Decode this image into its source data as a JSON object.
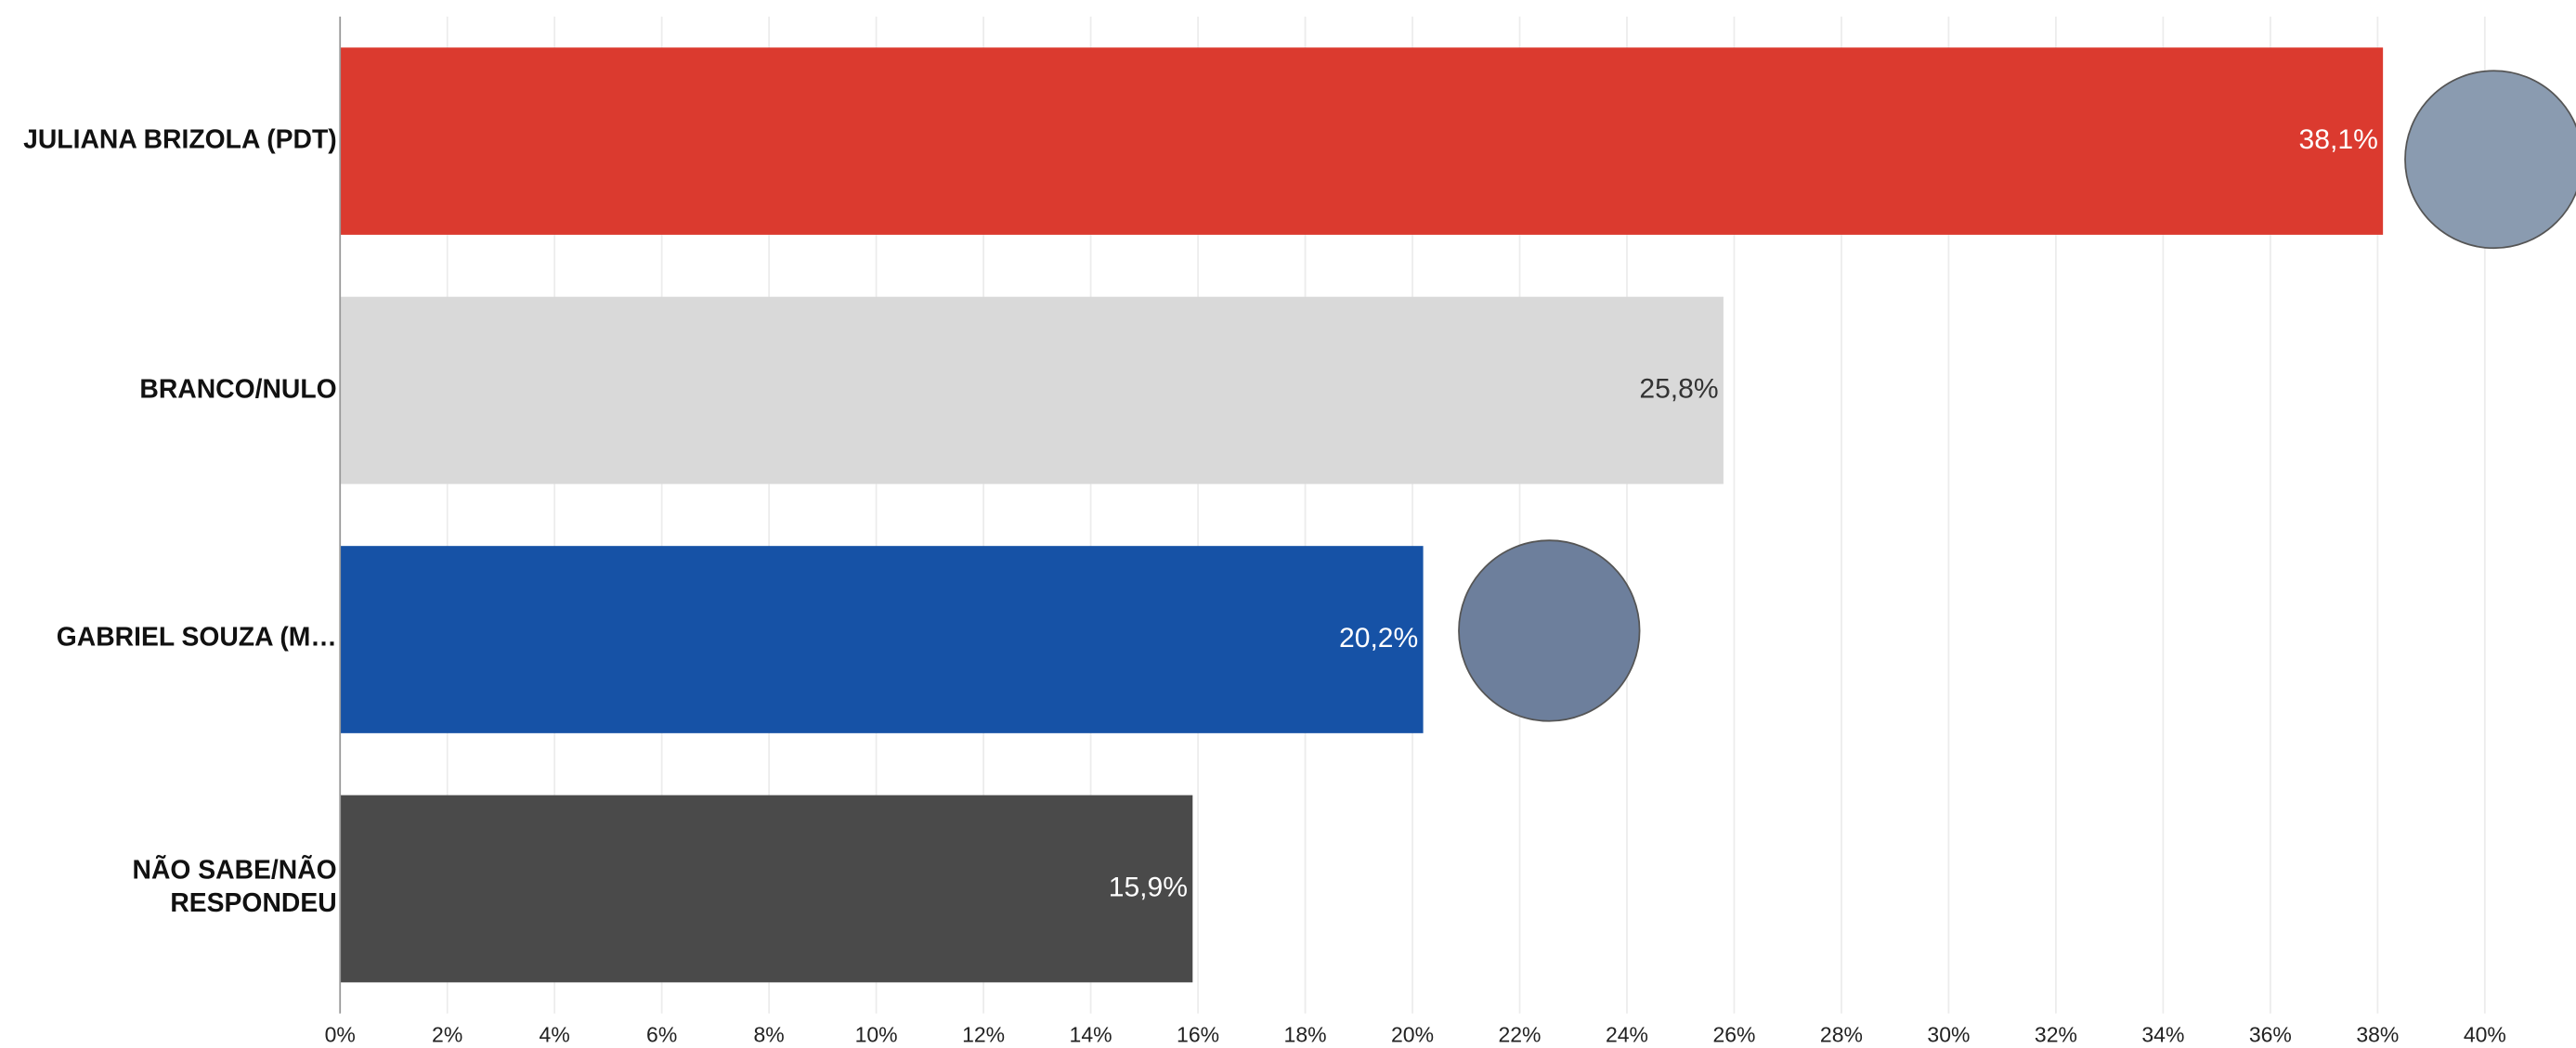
{
  "chart_data": {
    "type": "hbar",
    "categories": [
      "JULIANA BRIZOLA (PDT)",
      "BRANCO/NULO",
      "GABRIEL SOUZA (M…",
      "NÃO SABE/NÃO RESPONDEU"
    ],
    "values": [
      38.1,
      25.8,
      20.2,
      15.9
    ],
    "value_labels": [
      "38,1%",
      "25,8%",
      "20,2%",
      "15,9%"
    ],
    "colors": [
      "#db3a2f",
      "#d9d9d9",
      "#1652a6",
      "#4a4a4a"
    ],
    "label_colors": [
      "#ffffff",
      "#333333",
      "#ffffff",
      "#ffffff"
    ],
    "xlim": [
      0,
      41.7
    ],
    "xticks": [
      {
        "value": 0,
        "label": "0%"
      },
      {
        "value": 2,
        "label": "2%"
      },
      {
        "value": 4,
        "label": "4%"
      },
      {
        "value": 6,
        "label": "6%"
      },
      {
        "value": 8,
        "label": "8%"
      },
      {
        "value": 10,
        "label": "10%"
      },
      {
        "value": 12,
        "label": "12%"
      },
      {
        "value": 14,
        "label": "14%"
      },
      {
        "value": 16,
        "label": "16%"
      },
      {
        "value": 18,
        "label": "18%"
      },
      {
        "value": 20,
        "label": "20%"
      },
      {
        "value": 22,
        "label": "22%"
      },
      {
        "value": 24,
        "label": "24%"
      },
      {
        "value": 26,
        "label": "26%"
      },
      {
        "value": 28,
        "label": "28%"
      },
      {
        "value": 30,
        "label": "30%"
      },
      {
        "value": 32,
        "label": "32%"
      },
      {
        "value": 34,
        "label": "34%"
      },
      {
        "value": 36,
        "label": "36%"
      },
      {
        "value": 38,
        "label": "38%"
      },
      {
        "value": 40,
        "label": "40%"
      }
    ],
    "grid": true
  }
}
